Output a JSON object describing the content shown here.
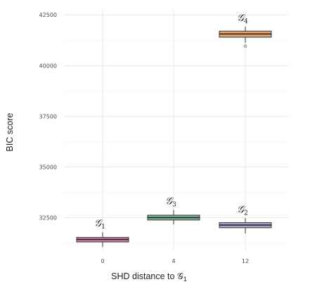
{
  "chart_data": {
    "type": "boxplot",
    "xlabel": "SHD distance to 𝒢",
    "xlabel_sub": "1",
    "ylabel": "BIC score",
    "ylim": [
      30850,
      42750
    ],
    "yticks": [
      32500,
      35000,
      37500,
      40000,
      42500
    ],
    "ytick_labels": [
      "32500",
      "35000",
      "37500",
      "40000",
      "42500"
    ],
    "categories": [
      "0",
      "4",
      "12"
    ],
    "grid": true,
    "boxes": [
      {
        "category": "0",
        "label": "𝒢",
        "label_sub": "1",
        "color": "#d77fb0",
        "whisker_low": 31050,
        "q1": 31300,
        "median": 31420,
        "q3": 31520,
        "whisker_high": 31780,
        "outliers": []
      },
      {
        "category": "4",
        "label": "𝒢",
        "label_sub": "3",
        "color": "#7fb99a",
        "whisker_low": 32170,
        "q1": 32380,
        "median": 32500,
        "q3": 32620,
        "whisker_high": 32880,
        "outliers": []
      },
      {
        "category": "12",
        "label": "𝒢",
        "label_sub": "2",
        "color": "#a9a6d1",
        "whisker_low": 31720,
        "q1": 32000,
        "median": 32130,
        "q3": 32250,
        "whisker_high": 32470,
        "outliers": []
      },
      {
        "category": "12",
        "label": "𝒢",
        "label_sub": "4",
        "color": "#e7a46c",
        "whisker_low": 41120,
        "q1": 41400,
        "median": 41560,
        "q3": 41700,
        "whisker_high": 41920,
        "outliers": [
          40960
        ]
      }
    ]
  }
}
